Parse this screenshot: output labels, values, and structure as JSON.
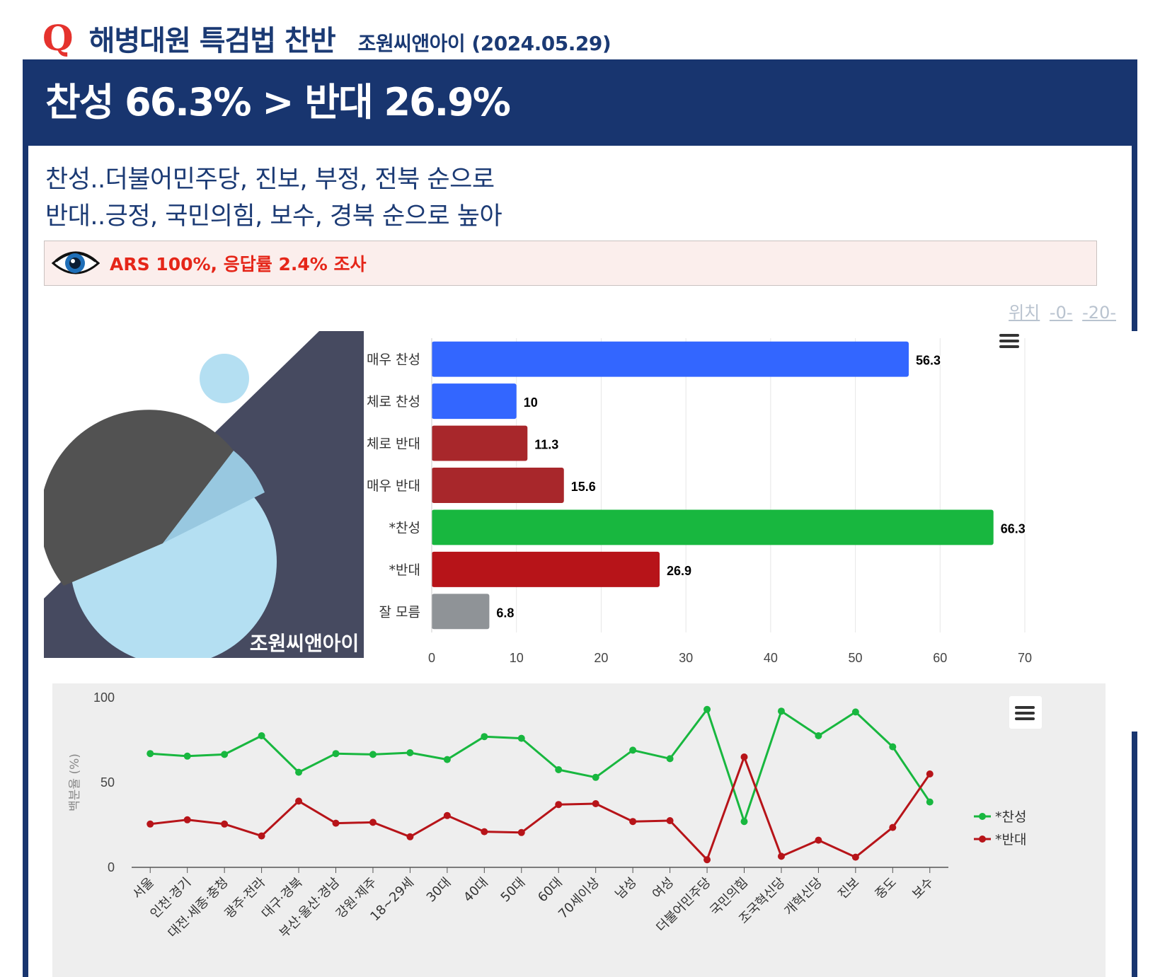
{
  "header": {
    "q_mark": "Q",
    "title": "해병대원 특검법 찬반",
    "source": "조원씨앤아이 (2024.05.29)"
  },
  "headline": "찬성 66.3% > 반대 26.9%",
  "subtitle_lines": [
    "찬성..더불어민주당, 진보, 부정, 전북 순으로",
    "반대..긍정, 국민의힘, 보수, 경북 순으로 높아"
  ],
  "method": {
    "icon": "eye-icon",
    "text": "ARS 100%, 응답률 2.4% 조사"
  },
  "position_links": {
    "label": "위치",
    "link1": "-0-",
    "link2": "-20-"
  },
  "logo": {
    "text": "조원씨앤아이"
  },
  "colors": {
    "navy": "#18356f",
    "strong_yes": "#3366ff",
    "strong_no": "#a8272b",
    "yes_total": "#18b73f",
    "no_total": "#b71419",
    "unknown": "#8f9397",
    "line_yes": "#18b73f",
    "line_no": "#b71419"
  },
  "chart_data": [
    {
      "type": "bar",
      "orientation": "horizontal",
      "categories": [
        "매우 찬성",
        "대체로 찬성",
        "대체로 반대",
        "매우 반대",
        "*찬성",
        "*반대",
        "잘 모름"
      ],
      "values": [
        56.3,
        10,
        11.3,
        15.6,
        66.3,
        26.9,
        6.8
      ],
      "value_labels": [
        "56.3",
        "10",
        "11.3",
        "15.6",
        "66.3",
        "26.9",
        "6.8"
      ],
      "bar_colors": [
        "#3366ff",
        "#3366ff",
        "#a8272b",
        "#a8272b",
        "#18b73f",
        "#b71419",
        "#8f9397"
      ],
      "xlim": [
        0,
        70
      ],
      "xticks": [
        0,
        10,
        20,
        30,
        40,
        50,
        60,
        70
      ],
      "grid": true,
      "menu_icon": "hamburger-menu-icon"
    },
    {
      "type": "line",
      "categories": [
        "서울",
        "인천·경기",
        "대전·세종·충청",
        "광주·전라",
        "대구·경북",
        "부산·울산·경남",
        "강원·제주",
        "18~29세",
        "30대",
        "40대",
        "50대",
        "60대",
        "70세이상",
        "남성",
        "여성",
        "더불어민주당",
        "국민의힘",
        "조국혁신당",
        "개혁신당",
        "진보",
        "중도",
        "보수"
      ],
      "series": [
        {
          "name": "*찬성",
          "color": "#18b73f",
          "values": [
            67,
            65.5,
            66.5,
            77.5,
            56,
            67,
            66.5,
            67.5,
            63.5,
            77,
            76,
            57.5,
            53,
            69,
            64,
            93,
            27,
            92,
            77.5,
            91.5,
            71,
            38.5
          ]
        },
        {
          "name": "*반대",
          "color": "#b71419",
          "values": [
            25.5,
            28,
            25.5,
            18.5,
            39,
            26,
            26.5,
            18,
            30.5,
            21,
            20.5,
            37,
            37.5,
            27,
            27.5,
            4.5,
            65,
            6.5,
            16,
            6,
            23.5,
            55
          ]
        }
      ],
      "ylabel": "백분율 (%)",
      "ylim": [
        0,
        100
      ],
      "yticks": [
        0,
        50,
        100
      ],
      "legend_position": "right",
      "grid": false,
      "menu_icon": "hamburger-menu-icon"
    }
  ]
}
